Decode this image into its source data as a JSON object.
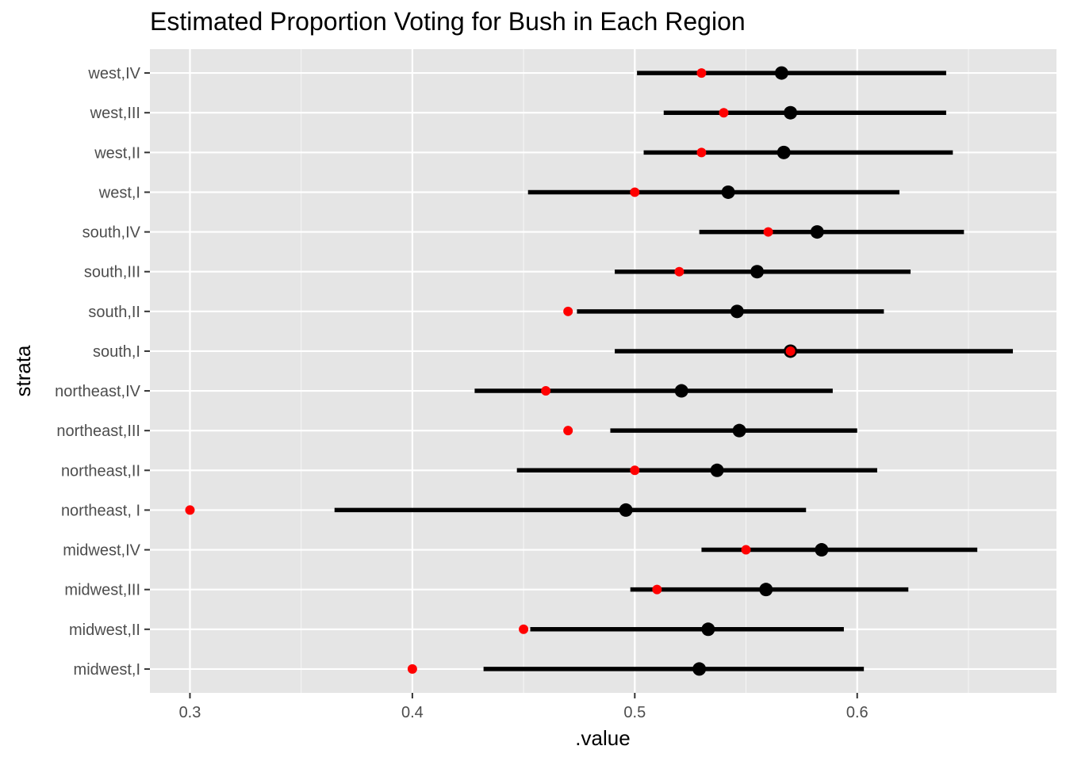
{
  "chart_data": {
    "type": "scatter",
    "title": "Estimated Proportion Voting for Bush in Each Region",
    "xlabel": ".value",
    "ylabel": "strata",
    "xlim": [
      0.282,
      0.6896
    ],
    "x_ticks": [
      0.3,
      0.4,
      0.5,
      0.6
    ],
    "x_tick_labels": [
      "0.3",
      "0.4",
      "0.5",
      "0.6"
    ],
    "grid": true,
    "legend": "none",
    "colors": {
      "panel": "#E5E5E5",
      "grid_major": "#FFFFFF",
      "estimate": "#000000",
      "observed": "#FF0000",
      "interval": "#000000"
    },
    "categories": [
      "midwest,I",
      "midwest,II",
      "midwest,III",
      "midwest,IV",
      "northeast, I",
      "northeast,II",
      "northeast,III",
      "northeast,IV",
      "south,I",
      "south,II",
      "south,III",
      "south,IV",
      "west,I",
      "west,II",
      "west,III",
      "west,IV"
    ],
    "interval_low": [
      0.432,
      0.453,
      0.498,
      0.53,
      0.365,
      0.447,
      0.489,
      0.428,
      0.491,
      0.474,
      0.491,
      0.529,
      0.452,
      0.504,
      0.513,
      0.501
    ],
    "interval_high": [
      0.603,
      0.594,
      0.623,
      0.654,
      0.577,
      0.609,
      0.6,
      0.589,
      0.67,
      0.612,
      0.624,
      0.648,
      0.619,
      0.643,
      0.64,
      0.64
    ],
    "estimate": [
      0.529,
      0.533,
      0.559,
      0.584,
      0.496,
      0.537,
      0.547,
      0.521,
      0.57,
      0.546,
      0.555,
      0.582,
      0.542,
      0.567,
      0.57,
      0.566
    ],
    "observed": [
      0.4,
      0.45,
      0.51,
      0.55,
      0.3,
      0.5,
      0.47,
      0.46,
      0.57,
      0.47,
      0.52,
      0.56,
      0.5,
      0.53,
      0.54,
      0.53
    ]
  }
}
